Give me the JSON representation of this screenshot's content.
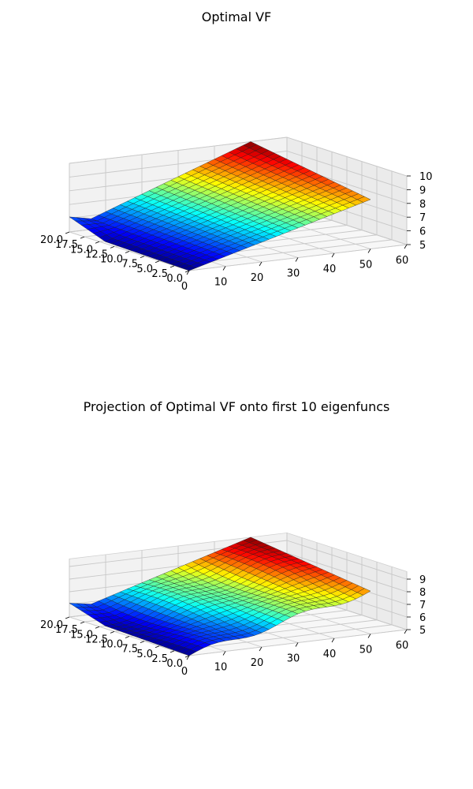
{
  "chart_data": [
    {
      "type": "surface",
      "title": "Optimal VF",
      "colormap": "jet",
      "xlabel": "",
      "ylabel": "",
      "zlabel": "",
      "x_ticks": [
        0,
        10,
        20,
        30,
        40,
        50,
        60
      ],
      "x_tick_labels": [
        "0",
        "10",
        "20",
        "30",
        "40",
        "50",
        "60"
      ],
      "y_ticks": [
        0,
        2.5,
        5,
        7.5,
        10,
        12.5,
        15,
        17.5,
        20
      ],
      "y_tick_labels": [
        "0.0",
        "2.5",
        "5.0",
        "7.5",
        "10.0",
        "12.5",
        "15.0",
        "17.5",
        "20.0"
      ],
      "z_ticks": [
        5,
        6,
        7,
        8,
        9,
        10
      ],
      "z_tick_labels": [
        "5",
        "6",
        "7",
        "8",
        "9",
        "10"
      ],
      "xlim": [
        0,
        60
      ],
      "ylim": [
        0,
        20
      ],
      "zlim": [
        5,
        10
      ],
      "x_grid": [
        0,
        2,
        4,
        6,
        8,
        10,
        12,
        14,
        16,
        18,
        20,
        22,
        24,
        26,
        28,
        30,
        32,
        34,
        36,
        38,
        40,
        42,
        44,
        46,
        48,
        50
      ],
      "y_grid": [
        0,
        1,
        2,
        3,
        4,
        5,
        6,
        7,
        8,
        9,
        10,
        11,
        12,
        13,
        14,
        15,
        16,
        17,
        18,
        19,
        20
      ],
      "z_corners": {
        "x0_y0": 5.0,
        "x50_y0": 8.6,
        "x0_y20": 5.2,
        "x50_y20": 10.0
      },
      "step_feature": {
        "at_x": 0,
        "y_from": 14,
        "height": 0.0
      },
      "ridge_feature": {
        "y_from": 14,
        "x_from": 0,
        "x_to": 6,
        "extra": 0.9
      },
      "grid": true
    },
    {
      "type": "surface",
      "title": "Projection of Optimal VF onto first 10 eigenfuncs",
      "colormap": "jet",
      "xlabel": "",
      "ylabel": "",
      "zlabel": "",
      "x_ticks": [
        0,
        10,
        20,
        30,
        40,
        50,
        60
      ],
      "x_tick_labels": [
        "0",
        "10",
        "20",
        "30",
        "40",
        "50",
        "60"
      ],
      "y_ticks": [
        0,
        2.5,
        5,
        7.5,
        10,
        12.5,
        15,
        17.5,
        20
      ],
      "y_tick_labels": [
        "0.0",
        "2.5",
        "5.0",
        "7.5",
        "10.0",
        "12.5",
        "15.0",
        "17.5",
        "20.0"
      ],
      "z_ticks": [
        5,
        6,
        7,
        8,
        9
      ],
      "z_tick_labels": [
        "5",
        "6",
        "7",
        "8",
        "9"
      ],
      "xlim": [
        0,
        60
      ],
      "ylim": [
        0,
        20
      ],
      "zlim": [
        5,
        9.6
      ],
      "x_grid": [
        0,
        2,
        4,
        6,
        8,
        10,
        12,
        14,
        16,
        18,
        20,
        22,
        24,
        26,
        28,
        30,
        32,
        34,
        36,
        38,
        40,
        42,
        44,
        46,
        48,
        50
      ],
      "y_grid": [
        0,
        1,
        2,
        3,
        4,
        5,
        6,
        7,
        8,
        9,
        10,
        11,
        12,
        13,
        14,
        15,
        16,
        17,
        18,
        19,
        20
      ],
      "z_corners": {
        "x0_y0": 5.0,
        "x50_y0": 8.4,
        "x0_y20": 5.3,
        "x50_y20": 9.6
      },
      "ripple_amplitude": 0.25,
      "ridge_feature": {
        "y_from": 14,
        "x_from": 0,
        "x_to": 6,
        "extra": 0.8
      },
      "grid": true
    }
  ]
}
